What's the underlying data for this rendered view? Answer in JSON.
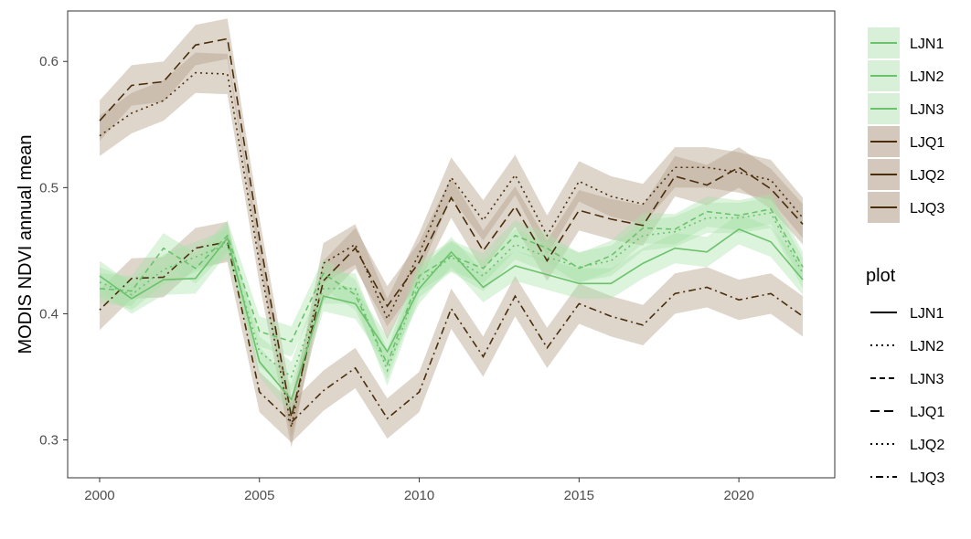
{
  "chart_data": {
    "type": "line",
    "title": "",
    "xlabel": "",
    "ylabel": "MODIS NDVI annual mean",
    "xlim": [
      1999,
      2023
    ],
    "ylim": [
      0.27,
      0.64
    ],
    "x_ticks": [
      2000,
      2005,
      2010,
      2015,
      2020
    ],
    "y_ticks": [
      0.3,
      0.4,
      0.5,
      0.6
    ],
    "y_tick_labels": [
      "0.3",
      "0.4",
      "0.5",
      "0.6"
    ],
    "grid": false,
    "legend_fill_position": "right-top",
    "legend_linetype_title": "plot",
    "colors": {
      "LJN": "#6cc26c",
      "LJN_ribbon": "#a8e0a8",
      "LJQ": "#4a2e0c",
      "LJQ_ribbon": "#b5a28c"
    },
    "x": [
      2000,
      2001,
      2002,
      2003,
      2004,
      2005,
      2006,
      2007,
      2008,
      2009,
      2010,
      2011,
      2012,
      2013,
      2014,
      2015,
      2016,
      2017,
      2018,
      2019,
      2020,
      2021,
      2022
    ],
    "series": [
      {
        "name": "LJN1",
        "group": "LJN",
        "dash": "solid",
        "values": [
          0.43,
          0.412,
          0.427,
          0.428,
          0.46,
          0.362,
          0.332,
          0.414,
          0.408,
          0.37,
          0.42,
          0.449,
          0.421,
          0.438,
          0.431,
          0.424,
          0.424,
          0.44,
          0.452,
          0.449,
          0.467,
          0.457,
          0.427
        ],
        "band": 0.012
      },
      {
        "name": "LJN2",
        "group": "LJN",
        "dash": "dotted",
        "values": [
          0.425,
          0.415,
          0.435,
          0.445,
          0.455,
          0.37,
          0.35,
          0.42,
          0.42,
          0.355,
          0.425,
          0.445,
          0.43,
          0.455,
          0.445,
          0.437,
          0.442,
          0.462,
          0.465,
          0.476,
          0.476,
          0.48,
          0.432
        ],
        "band": 0.012
      },
      {
        "name": "LJN3",
        "group": "LJN",
        "dash": "dashed",
        "values": [
          0.42,
          0.418,
          0.452,
          0.436,
          0.462,
          0.386,
          0.378,
          0.432,
          0.415,
          0.36,
          0.43,
          0.446,
          0.436,
          0.462,
          0.452,
          0.436,
          0.446,
          0.468,
          0.467,
          0.481,
          0.478,
          0.483,
          0.437
        ],
        "band": 0.012
      },
      {
        "name": "LJQ1",
        "group": "LJQ",
        "dash": "longdash",
        "values": [
          0.553,
          0.581,
          0.584,
          0.613,
          0.618,
          0.46,
          0.318,
          0.426,
          0.452,
          0.406,
          0.441,
          0.492,
          0.45,
          0.485,
          0.442,
          0.482,
          0.475,
          0.47,
          0.509,
          0.502,
          0.516,
          0.499,
          0.471
        ],
        "band": 0.016
      },
      {
        "name": "LJQ2",
        "group": "LJQ",
        "dash": "dotted",
        "values": [
          0.541,
          0.559,
          0.569,
          0.591,
          0.59,
          0.44,
          0.31,
          0.44,
          0.455,
          0.396,
          0.448,
          0.508,
          0.474,
          0.51,
          0.462,
          0.505,
          0.493,
          0.487,
          0.516,
          0.516,
          0.512,
          0.506,
          0.476
        ],
        "band": 0.016
      },
      {
        "name": "LJQ3",
        "group": "LJQ",
        "dash": "dotdash",
        "values": [
          0.403,
          0.428,
          0.429,
          0.452,
          0.457,
          0.338,
          0.314,
          0.339,
          0.357,
          0.317,
          0.338,
          0.404,
          0.366,
          0.414,
          0.373,
          0.408,
          0.398,
          0.391,
          0.416,
          0.421,
          0.411,
          0.416,
          0.398
        ],
        "band": 0.016
      }
    ],
    "legend_linetypes": [
      {
        "name": "LJN1",
        "dash": "solid"
      },
      {
        "name": "LJN2",
        "dash": "dotted"
      },
      {
        "name": "LJN3",
        "dash": "dashed"
      },
      {
        "name": "LJQ1",
        "dash": "longdash"
      },
      {
        "name": "LJQ2",
        "dash": "dotted"
      },
      {
        "name": "LJQ3",
        "dash": "dotdash"
      }
    ]
  }
}
